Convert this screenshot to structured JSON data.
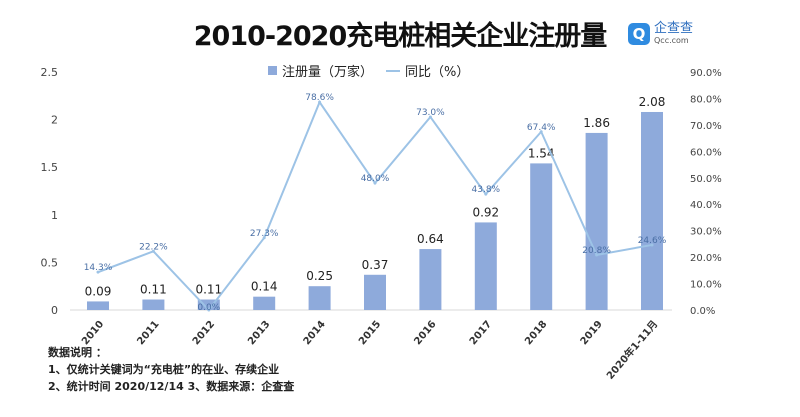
{
  "chart_data": {
    "type": "bar+line",
    "title": "2010-2020充电桩相关企业注册量",
    "categories": [
      "2010",
      "2011",
      "2012",
      "2013",
      "2014",
      "2015",
      "2016",
      "2017",
      "2018",
      "2019",
      "2020年1-11月"
    ],
    "series": [
      {
        "name": "注册量（万家）",
        "type": "bar",
        "axis": "left",
        "color": "#8eaadb",
        "values": [
          0.09,
          0.11,
          0.11,
          0.14,
          0.25,
          0.37,
          0.64,
          0.92,
          1.54,
          1.86,
          2.08
        ],
        "labels": [
          "0.09",
          "0.11",
          "0.11",
          "0.14",
          "0.25",
          "0.37",
          "0.64",
          "0.92",
          "1.54",
          "1.86",
          "2.08"
        ]
      },
      {
        "name": "同比（%）",
        "type": "line",
        "axis": "right",
        "color": "#9dc3e6",
        "values": [
          14.3,
          22.2,
          0.0,
          27.3,
          78.6,
          48.0,
          73.0,
          43.8,
          67.4,
          20.8,
          24.6
        ],
        "labels": [
          "14.3%",
          "22.2%",
          "0.0%",
          "27.3%",
          "78.6%",
          "48.0%",
          "73.0%",
          "43.8%",
          "67.4%",
          "20.8%",
          "24.6%"
        ]
      }
    ],
    "left_axis": {
      "ylim": [
        0,
        2.5
      ],
      "ticks": [
        "0",
        "0.5",
        "1",
        "1.5",
        "2",
        "2.5"
      ]
    },
    "right_axis": {
      "ylim": [
        0,
        90
      ],
      "ticks": [
        "0.0%",
        "10.0%",
        "20.0%",
        "30.0%",
        "40.0%",
        "50.0%",
        "60.0%",
        "70.0%",
        "80.0%",
        "90.0%"
      ]
    },
    "grid": false,
    "legend": "top-center"
  },
  "logo": {
    "mark": "Q",
    "name": "企查查",
    "domain": "Qcc.com"
  },
  "notes": {
    "heading": "数据说明 ：",
    "line1": "1、仅统计关键词为“充电桩”的在业、存续企业",
    "line2": "2、统计时间  2020/12/14    3、数据来源：企查查"
  }
}
